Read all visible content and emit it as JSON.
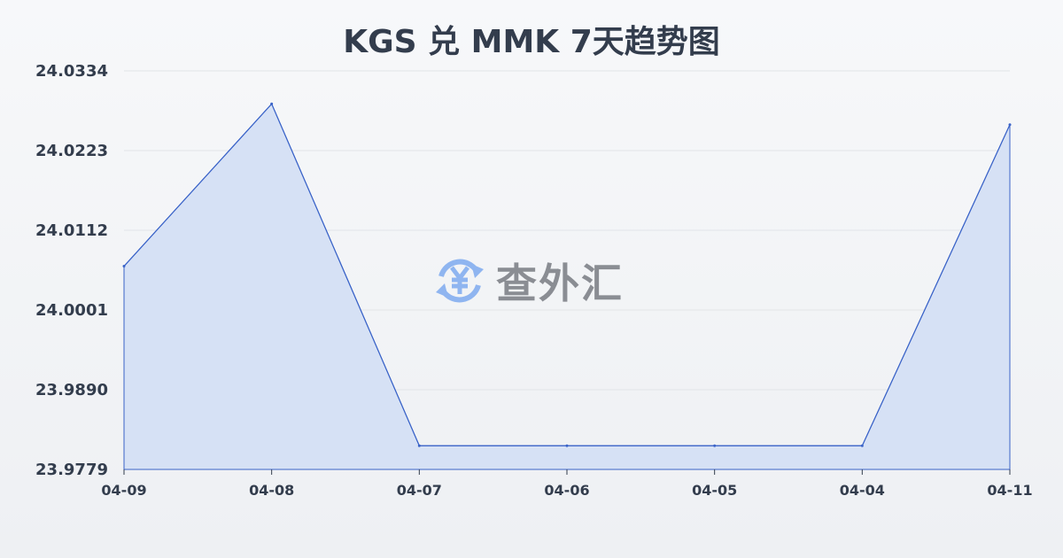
{
  "chart_data": {
    "type": "area",
    "title": "KGS 兑 MMK 7天趋势图",
    "categories": [
      "04-09",
      "04-08",
      "04-07",
      "04-06",
      "04-05",
      "04-04",
      "04-11"
    ],
    "values": [
      24.0062,
      24.0288,
      23.9812,
      23.9812,
      23.9812,
      23.9812,
      24.0259
    ],
    "yticks": [
      "24.0334",
      "24.0223",
      "24.0112",
      "24.0001",
      "23.9890",
      "23.9779"
    ],
    "ylim": [
      23.9779,
      24.0334
    ],
    "grid": true,
    "line_color": "#3a63c8",
    "fill_color": "#d6e1f5"
  },
  "watermark": {
    "text": "查外汇",
    "icon": "yen-exchange-icon",
    "icon_color": "#8fb5f0"
  }
}
